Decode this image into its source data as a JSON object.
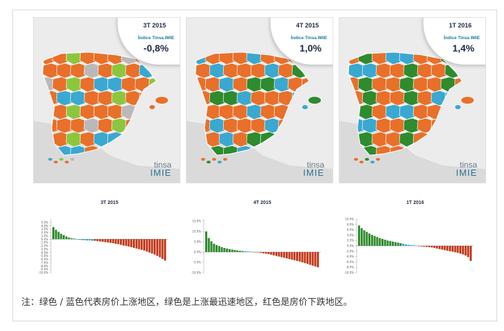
{
  "note": "注：绿色 / 蓝色代表房价上涨地区，绿色是上涨最迅速地区，红色是房价下跌地区。",
  "colors": {
    "green": "#2e8b2e",
    "lightgreen": "#8cc63f",
    "blue": "#3aa8d0",
    "orange": "#e8702a",
    "gray": "#b9b9b9",
    "red": "#c0391b"
  },
  "maps": [
    {
      "period": "3T 2015",
      "index_label": "Índice Tinsa IMIE",
      "value": "-0,8%",
      "logo_top": "tinsa",
      "logo_bottom": "IMIE"
    },
    {
      "period": "4T 2015",
      "index_label": "Índice Tinsa IMIE",
      "value": "1,0%",
      "logo_top": "tinsa",
      "logo_bottom": "IMIE"
    },
    {
      "period": "1T 2016",
      "index_label": "Índice Tinsa IMIE",
      "value": "1,4%",
      "logo_top": "tinsa",
      "logo_bottom": "IMIE"
    }
  ],
  "chart_data": [
    {
      "type": "bar",
      "title": "3T 2015",
      "ylim": [
        -10,
        6
      ],
      "yticks": [
        "5.0%",
        "4.0%",
        "3.0%",
        "2.0%",
        "1.0%",
        "0.0%",
        "-1.0%",
        "-2.0%",
        "-3.0%",
        "-4.0%",
        "-5.0%",
        "-6.0%",
        "-7.0%",
        "-8.0%",
        "-9.0%",
        "-10.0%"
      ],
      "ytick_values": [
        5,
        4,
        3,
        2,
        1,
        0,
        -1,
        -2,
        -3,
        -4,
        -5,
        -6,
        -7,
        -8,
        -9,
        -10
      ],
      "values": [
        3.6,
        2.8,
        2.2,
        1.6,
        1.2,
        0.8,
        0.5,
        0.3,
        0.2,
        -0.1,
        -0.2,
        -0.3,
        -0.3,
        -0.4,
        -0.4,
        -0.5,
        -0.5,
        -0.6,
        -0.7,
        -0.8,
        -0.9,
        -1.0,
        -1.1,
        -1.2,
        -1.4,
        -1.5,
        -1.7,
        -1.9,
        -2.0,
        -2.2,
        -2.4,
        -2.6,
        -2.8,
        -3.0,
        -3.2,
        -3.4,
        -3.7,
        -4.0,
        -4.3,
        -4.6,
        -5.0,
        -5.4,
        -5.9,
        -6.4
      ],
      "colors": [
        "g",
        "g",
        "g",
        "g",
        "g",
        "g",
        "g",
        "g",
        "g",
        "b",
        "b",
        "b",
        "b",
        "b",
        "b",
        "b",
        "r",
        "r",
        "r",
        "r",
        "r",
        "r",
        "r",
        "r",
        "r",
        "r",
        "r",
        "r",
        "r",
        "r",
        "r",
        "r",
        "r",
        "r",
        "r",
        "r",
        "r",
        "r",
        "r",
        "r",
        "r",
        "r",
        "r",
        "r"
      ]
    },
    {
      "type": "bar",
      "title": "4T 2015",
      "ylim": [
        -10,
        16
      ],
      "yticks": [
        "15.0%",
        "10.0%",
        "5.0%",
        "0.0%",
        "-5.0%",
        "-10.0%"
      ],
      "ytick_values": [
        15,
        10,
        5,
        0,
        -5,
        -10
      ],
      "values": [
        10.0,
        6.8,
        5.2,
        4.0,
        3.4,
        2.9,
        2.4,
        2.0,
        1.7,
        1.4,
        1.2,
        1.0,
        0.8,
        0.6,
        0.5,
        0.4,
        0.3,
        0.2,
        0.1,
        -0.1,
        -0.2,
        -0.4,
        -0.6,
        -0.8,
        -1.0,
        -1.3,
        -1.6,
        -1.9,
        -2.2,
        -2.5,
        -2.8,
        -3.1,
        -3.4,
        -3.7,
        -4.0,
        -4.3,
        -4.6,
        -5.0,
        -5.4,
        -5.8,
        -6.2,
        -6.6,
        -7.0,
        -7.4
      ],
      "colors": [
        "g",
        "g",
        "g",
        "g",
        "g",
        "g",
        "g",
        "g",
        "g",
        "g",
        "g",
        "g",
        "g",
        "g",
        "g",
        "b",
        "b",
        "b",
        "b",
        "r",
        "r",
        "r",
        "r",
        "r",
        "r",
        "r",
        "r",
        "r",
        "r",
        "r",
        "r",
        "r",
        "r",
        "r",
        "r",
        "r",
        "r",
        "r",
        "r",
        "r",
        "r",
        "r",
        "r",
        "r"
      ]
    },
    {
      "type": "bar",
      "title": "1T 2016",
      "ylim": [
        -10,
        10
      ],
      "yticks": [
        "10.0%",
        "8.0%",
        "6.0%",
        "4.0%",
        "2.0%",
        "0.0%",
        "-2.0%",
        "-4.0%",
        "-6.0%",
        "-8.0%",
        "-10.0%"
      ],
      "ytick_values": [
        10,
        8,
        6,
        4,
        2,
        0,
        -2,
        -4,
        -6,
        -8,
        -10
      ],
      "values": [
        7.6,
        6.6,
        5.8,
        5.2,
        4.6,
        4.1,
        3.7,
        3.3,
        2.9,
        2.6,
        2.3,
        2.0,
        1.8,
        1.6,
        1.4,
        1.2,
        1.0,
        0.8,
        0.6,
        0.4,
        0.3,
        0.2,
        0.1,
        -0.1,
        -0.2,
        -0.3,
        -0.4,
        -0.5,
        -0.6,
        -0.8,
        -1.0,
        -1.2,
        -1.4,
        -1.6,
        -1.8,
        -2.0,
        -2.2,
        -2.4,
        -2.6,
        -2.9,
        -3.2,
        -3.6,
        -4.2,
        -5.6
      ],
      "colors": [
        "g",
        "g",
        "g",
        "g",
        "g",
        "g",
        "g",
        "g",
        "g",
        "g",
        "g",
        "g",
        "g",
        "g",
        "g",
        "g",
        "g",
        "b",
        "b",
        "b",
        "b",
        "b",
        "b",
        "r",
        "r",
        "r",
        "r",
        "r",
        "r",
        "r",
        "r",
        "r",
        "r",
        "r",
        "r",
        "r",
        "r",
        "r",
        "r",
        "r",
        "r",
        "r",
        "r",
        "r"
      ]
    }
  ]
}
